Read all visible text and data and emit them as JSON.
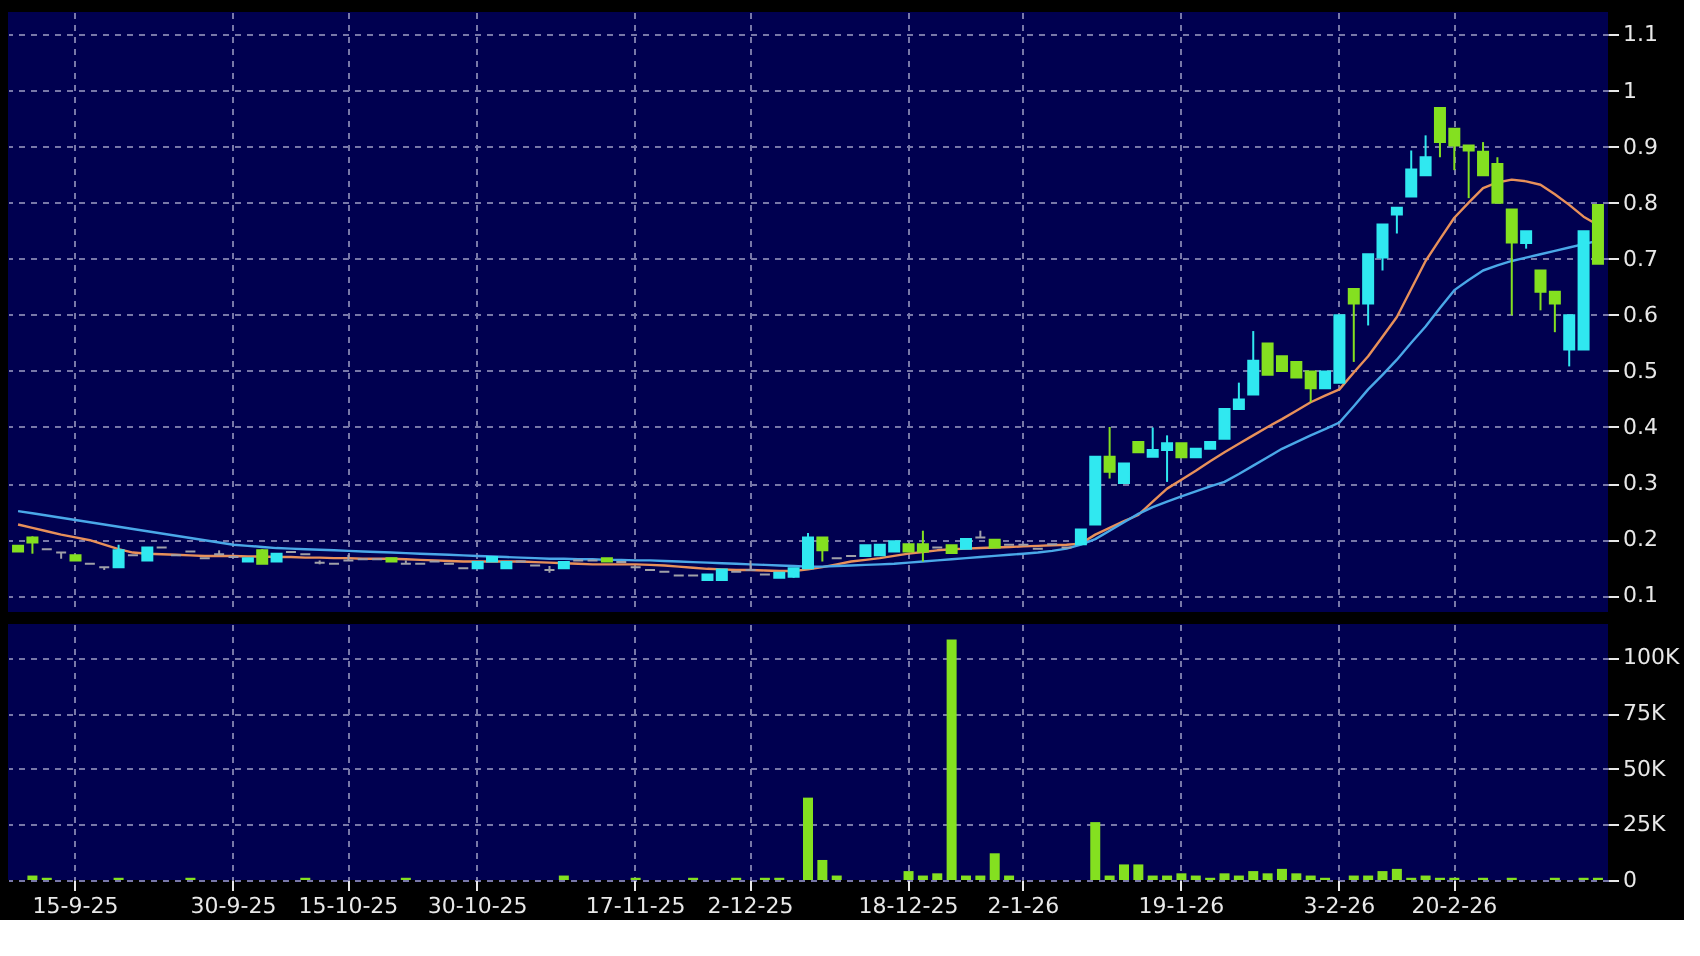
{
  "chart_data": [
    {
      "type": "candlestick",
      "categories": [
        null,
        null,
        null,
        null,
        null,
        null,
        null,
        null,
        null,
        null,
        null,
        null,
        null,
        null,
        null,
        null,
        null,
        null,
        null,
        null,
        null,
        null,
        null,
        null,
        null,
        null,
        null,
        null,
        null,
        null,
        null,
        null,
        null,
        null,
        null,
        null,
        null,
        null,
        null,
        null,
        null,
        null,
        null,
        null,
        null,
        null,
        null,
        null,
        null,
        null,
        null,
        null,
        null,
        null,
        null,
        null,
        null,
        null,
        null,
        null,
        null,
        null,
        null,
        null,
        null,
        null,
        null,
        null,
        null,
        null,
        null,
        null,
        null,
        null,
        null,
        null,
        null,
        null,
        null,
        null,
        null,
        null,
        null,
        null,
        null,
        null,
        null,
        null,
        null,
        null,
        null,
        null,
        null,
        null,
        null,
        null,
        null,
        null,
        null,
        null,
        null,
        null,
        null,
        null,
        null,
        null,
        null,
        null,
        null,
        null,
        null
      ],
      "ohlc": [
        [
          0.188,
          0.188,
          0.178,
          0.178
        ],
        [
          0.203,
          0.205,
          0.174,
          0.194
        ],
        [
          0.182,
          0.182,
          0.182,
          0.182
        ],
        [
          0.176,
          0.176,
          0.165,
          0.176
        ],
        [
          0.171,
          0.171,
          0.162,
          0.162
        ],
        [
          0.156,
          0.156,
          0.156,
          0.156
        ],
        [
          0.15,
          0.15,
          0.145,
          0.15
        ],
        [
          0.15,
          0.19,
          0.15,
          0.18
        ],
        [
          0.171,
          0.171,
          0.171,
          0.171
        ],
        [
          0.162,
          0.185,
          0.162,
          0.185
        ],
        [
          0.185,
          0.185,
          0.185,
          0.185
        ],
        [
          0.171,
          0.171,
          0.171,
          0.171
        ],
        [
          0.178,
          0.178,
          0.178,
          0.178
        ],
        [
          0.166,
          0.166,
          0.166,
          0.166
        ],
        [
          0.173,
          0.18,
          0.173,
          0.173
        ],
        [
          0.168,
          0.168,
          0.168,
          0.168
        ],
        [
          0.16,
          0.166,
          0.16,
          0.166
        ],
        [
          0.18,
          0.182,
          0.156,
          0.156
        ],
        [
          0.16,
          0.174,
          0.16,
          0.174
        ],
        [
          0.177,
          0.177,
          0.177,
          0.177
        ],
        [
          0.173,
          0.173,
          0.173,
          0.173
        ],
        [
          0.158,
          0.162,
          0.155,
          0.158
        ],
        [
          0.156,
          0.156,
          0.156,
          0.156
        ],
        [
          0.162,
          0.172,
          0.162,
          0.162
        ],
        [
          0.164,
          0.164,
          0.164,
          0.164
        ],
        [
          0.164,
          0.164,
          0.164,
          0.164
        ],
        [
          0.166,
          0.166,
          0.16,
          0.16
        ],
        [
          0.156,
          0.162,
          0.156,
          0.156
        ],
        [
          0.156,
          0.156,
          0.156,
          0.156
        ],
        [
          0.16,
          0.16,
          0.16,
          0.16
        ],
        [
          0.156,
          0.156,
          0.156,
          0.156
        ],
        [
          0.148,
          0.148,
          0.148,
          0.148
        ],
        [
          0.148,
          0.159,
          0.148,
          0.159
        ],
        [
          0.16,
          0.168,
          0.16,
          0.168
        ],
        [
          0.148,
          0.159,
          0.148,
          0.159
        ],
        [
          0.16,
          0.16,
          0.16,
          0.16
        ],
        [
          0.153,
          0.153,
          0.153,
          0.153
        ],
        [
          0.145,
          0.152,
          0.14,
          0.145
        ],
        [
          0.148,
          0.159,
          0.148,
          0.159
        ],
        [
          0.162,
          0.162,
          0.162,
          0.162
        ],
        [
          0.162,
          0.162,
          0.162,
          0.162
        ],
        [
          0.166,
          0.166,
          0.16,
          0.16
        ],
        [
          0.159,
          0.159,
          0.159,
          0.159
        ],
        [
          0.15,
          0.15,
          0.15,
          0.15
        ],
        [
          0.145,
          0.145,
          0.145,
          0.145
        ],
        [
          0.142,
          0.142,
          0.142,
          0.142
        ],
        [
          0.135,
          0.135,
          0.135,
          0.135
        ],
        [
          0.135,
          0.135,
          0.135,
          0.135
        ],
        [
          0.127,
          0.137,
          0.127,
          0.137
        ],
        [
          0.127,
          0.146,
          0.127,
          0.146
        ],
        [
          0.142,
          0.142,
          0.142,
          0.142
        ],
        [
          0.145,
          0.162,
          0.145,
          0.145
        ],
        [
          0.137,
          0.137,
          0.137,
          0.137
        ],
        [
          0.131,
          0.14,
          0.131,
          0.14
        ],
        [
          0.133,
          0.148,
          0.131,
          0.148
        ],
        [
          0.148,
          0.211,
          0.148,
          0.203
        ],
        [
          0.203,
          0.203,
          0.16,
          0.18
        ],
        [
          0.166,
          0.166,
          0.166,
          0.166
        ],
        [
          0.17,
          0.17,
          0.17,
          0.17
        ],
        [
          0.17,
          0.189,
          0.17,
          0.189
        ],
        [
          0.171,
          0.19,
          0.171,
          0.19
        ],
        [
          0.178,
          0.196,
          0.178,
          0.196
        ],
        [
          0.191,
          0.191,
          0.178,
          0.178
        ],
        [
          0.191,
          0.215,
          0.16,
          0.178
        ],
        [
          0.185,
          0.185,
          0.185,
          0.185
        ],
        [
          0.189,
          0.189,
          0.175,
          0.175
        ],
        [
          0.183,
          0.2,
          0.183,
          0.2
        ],
        [
          0.203,
          0.215,
          0.203,
          0.203
        ],
        [
          0.199,
          0.199,
          0.185,
          0.185
        ],
        [
          0.19,
          0.19,
          0.19,
          0.19
        ],
        [
          0.19,
          0.19,
          0.19,
          0.19
        ],
        [
          0.183,
          0.183,
          0.183,
          0.183
        ],
        [
          0.191,
          0.191,
          0.191,
          0.191
        ],
        [
          0.185,
          0.185,
          0.185,
          0.185
        ],
        [
          0.191,
          0.217,
          0.191,
          0.217
        ],
        [
          0.226,
          0.347,
          0.226,
          0.347
        ],
        [
          0.347,
          0.4,
          0.308,
          0.32
        ],
        [
          0.3,
          0.335,
          0.3,
          0.335
        ],
        [
          0.373,
          0.373,
          0.355,
          0.355
        ],
        [
          0.347,
          0.399,
          0.347,
          0.359
        ],
        [
          0.359,
          0.385,
          0.302,
          0.371
        ],
        [
          0.371,
          0.371,
          0.346,
          0.346
        ],
        [
          0.346,
          0.361,
          0.346,
          0.361
        ],
        [
          0.361,
          0.373,
          0.361,
          0.373
        ],
        [
          0.379,
          0.432,
          0.379,
          0.432
        ],
        [
          0.432,
          0.479,
          0.432,
          0.449
        ],
        [
          0.458,
          0.571,
          0.458,
          0.518
        ],
        [
          0.549,
          0.549,
          0.493,
          0.493
        ],
        [
          0.526,
          0.526,
          0.5,
          0.5
        ],
        [
          0.516,
          0.516,
          0.488,
          0.488
        ],
        [
          0.499,
          0.499,
          0.444,
          0.469
        ],
        [
          0.469,
          0.499,
          0.469,
          0.499
        ],
        [
          0.479,
          0.599,
          0.479,
          0.599
        ],
        [
          0.646,
          0.646,
          0.516,
          0.62
        ],
        [
          0.62,
          0.708,
          0.581,
          0.708
        ],
        [
          0.702,
          0.761,
          0.679,
          0.761
        ],
        [
          0.779,
          0.791,
          0.745,
          0.791
        ],
        [
          0.811,
          0.893,
          0.811,
          0.859
        ],
        [
          0.849,
          0.92,
          0.849,
          0.881
        ],
        [
          0.969,
          0.969,
          0.881,
          0.908
        ],
        [
          0.932,
          0.932,
          0.858,
          0.902
        ],
        [
          0.902,
          0.902,
          0.808,
          0.893
        ],
        [
          0.891,
          0.908,
          0.849,
          0.849
        ],
        [
          0.869,
          0.881,
          0.8,
          0.8
        ],
        [
          0.788,
          0.788,
          0.599,
          0.729
        ],
        [
          0.728,
          0.749,
          0.718,
          0.749
        ],
        [
          0.679,
          0.679,
          0.608,
          0.641
        ],
        [
          0.641,
          0.641,
          0.569,
          0.62
        ],
        [
          0.538,
          0.599,
          0.508,
          0.599
        ],
        [
          0.538,
          0.749,
          0.538,
          0.749
        ],
        [
          0.796,
          0.796,
          0.691,
          0.691
        ]
      ],
      "colors": [
        "#84e020",
        "#84e020",
        "#a0a0a8",
        "#a0a0a8",
        "#84e020",
        "#a0a0a8",
        "#a0a0a8",
        "#30e8f0",
        "#a0a0a8",
        "#30e8f0",
        "#a0a0a8",
        "#a0a0a8",
        "#a0a0a8",
        "#a0a0a8",
        "#a0a0a8",
        "#a0a0a8",
        "#30e8f0",
        "#84e020",
        "#30e8f0",
        "#a0a0a8",
        "#a0a0a8",
        "#a0a0a8",
        "#a0a0a8",
        "#a0a0a8",
        "#a0a0a8",
        "#a0a0a8",
        "#84e020",
        "#a0a0a8",
        "#a0a0a8",
        "#a0a0a8",
        "#a0a0a8",
        "#a0a0a8",
        "#30e8f0",
        "#30e8f0",
        "#30e8f0",
        "#a0a0a8",
        "#a0a0a8",
        "#a0a0a8",
        "#30e8f0",
        "#a0a0a8",
        "#a0a0a8",
        "#84e020",
        "#a0a0a8",
        "#a0a0a8",
        "#a0a0a8",
        "#a0a0a8",
        "#a0a0a8",
        "#a0a0a8",
        "#30e8f0",
        "#30e8f0",
        "#a0a0a8",
        "#a0a0a8",
        "#a0a0a8",
        "#30e8f0",
        "#30e8f0",
        "#30e8f0",
        "#84e020",
        "#a0a0a8",
        "#a0a0a8",
        "#30e8f0",
        "#30e8f0",
        "#30e8f0",
        "#84e020",
        "#84e020",
        "#a0a0a8",
        "#84e020",
        "#30e8f0",
        "#a0a0a8",
        "#84e020",
        "#a0a0a8",
        "#a0a0a8",
        "#a0a0a8",
        "#a0a0a8",
        "#a0a0a8",
        "#30e8f0",
        "#30e8f0",
        "#84e020",
        "#30e8f0",
        "#84e020",
        "#30e8f0",
        "#30e8f0",
        "#84e020",
        "#30e8f0",
        "#30e8f0",
        "#30e8f0",
        "#30e8f0",
        "#30e8f0",
        "#84e020",
        "#84e020",
        "#84e020",
        "#84e020",
        "#30e8f0",
        "#30e8f0",
        "#84e020",
        "#30e8f0",
        "#30e8f0",
        "#30e8f0",
        "#30e8f0",
        "#30e8f0",
        "#84e020",
        "#84e020",
        "#84e020",
        "#84e020",
        "#84e020",
        "#84e020",
        "#30e8f0",
        "#84e020",
        "#84e020",
        "#30e8f0",
        "#30e8f0",
        "#84e020"
      ],
      "series": [
        {
          "type": "line",
          "color": "#e8905a",
          "values": [
            0.226,
            0.22,
            0.214,
            0.208,
            0.203,
            0.198,
            0.19,
            0.182,
            0.176,
            0.174,
            0.173,
            0.172,
            0.171,
            0.17,
            0.17,
            0.17,
            0.169,
            0.169,
            0.168,
            0.168,
            0.167,
            0.167,
            0.166,
            0.166,
            0.165,
            0.165,
            0.165,
            0.164,
            0.163,
            0.162,
            0.161,
            0.16,
            0.16,
            0.16,
            0.16,
            0.16,
            0.159,
            0.158,
            0.157,
            0.156,
            0.155,
            0.155,
            0.155,
            0.155,
            0.154,
            0.153,
            0.151,
            0.149,
            0.147,
            0.146,
            0.145,
            0.145,
            0.144,
            0.143,
            0.143,
            0.146,
            0.15,
            0.155,
            0.16,
            0.163,
            0.166,
            0.17,
            0.174,
            0.177,
            0.18,
            0.182,
            0.183,
            0.184,
            0.185,
            0.186,
            0.187,
            0.188,
            0.189,
            0.19,
            0.192,
            0.208,
            0.22,
            0.232,
            0.243,
            0.267,
            0.29,
            0.306,
            0.322,
            0.339,
            0.355,
            0.37,
            0.385,
            0.4,
            0.414,
            0.429,
            0.444,
            0.456,
            0.467,
            0.497,
            0.526,
            0.561,
            0.596,
            0.646,
            0.696,
            0.735,
            0.773,
            0.8,
            0.826,
            0.836,
            0.841,
            0.838,
            0.832,
            0.815,
            0.796,
            0.775,
            0.76
          ]
        },
        {
          "type": "line",
          "color": "#4aa8e8",
          "values": [
            0.25,
            0.246,
            0.242,
            0.238,
            0.234,
            0.23,
            0.226,
            0.222,
            0.218,
            0.214,
            0.21,
            0.206,
            0.202,
            0.198,
            0.194,
            0.19,
            0.188,
            0.186,
            0.184,
            0.183,
            0.182,
            0.181,
            0.18,
            0.179,
            0.178,
            0.177,
            0.176,
            0.175,
            0.174,
            0.173,
            0.172,
            0.171,
            0.17,
            0.169,
            0.168,
            0.167,
            0.166,
            0.165,
            0.165,
            0.164,
            0.164,
            0.163,
            0.163,
            0.162,
            0.162,
            0.161,
            0.16,
            0.159,
            0.158,
            0.157,
            0.156,
            0.155,
            0.154,
            0.153,
            0.152,
            0.151,
            0.151,
            0.152,
            0.153,
            0.154,
            0.155,
            0.156,
            0.158,
            0.16,
            0.162,
            0.164,
            0.166,
            0.168,
            0.17,
            0.172,
            0.174,
            0.176,
            0.179,
            0.183,
            0.19,
            0.2,
            0.215,
            0.23,
            0.245,
            0.257,
            0.267,
            0.276,
            0.285,
            0.294,
            0.302,
            0.316,
            0.331,
            0.346,
            0.361,
            0.373,
            0.385,
            0.396,
            0.408,
            0.437,
            0.467,
            0.493,
            0.52,
            0.55,
            0.579,
            0.612,
            0.644,
            0.662,
            0.679,
            0.688,
            0.696,
            0.702,
            0.708,
            0.714,
            0.72,
            0.726,
            0.732
          ]
        }
      ],
      "ylim": [
        0.07,
        1.14
      ],
      "yticks": [
        0.1,
        0.2,
        0.3,
        0.4,
        0.5,
        0.6,
        0.7,
        0.8,
        0.9,
        1,
        1.1
      ],
      "grid": true,
      "tick_labels": "y"
    },
    {
      "type": "bar",
      "categories": [
        null,
        null,
        null,
        null,
        "15-9-25",
        null,
        null,
        null,
        null,
        null,
        null,
        null,
        null,
        null,
        null,
        "30-9-25",
        null,
        null,
        null,
        null,
        null,
        null,
        null,
        "15-10-25",
        null,
        null,
        null,
        null,
        null,
        null,
        null,
        null,
        "30-10-25",
        null,
        null,
        null,
        null,
        null,
        null,
        null,
        null,
        null,
        null,
        "17-11-25",
        null,
        null,
        null,
        null,
        null,
        null,
        null,
        "2-12-25",
        null,
        null,
        null,
        null,
        null,
        null,
        null,
        null,
        null,
        null,
        "18-12-25",
        null,
        null,
        null,
        null,
        null,
        null,
        null,
        "2-1-26",
        null,
        null,
        null,
        null,
        null,
        null,
        null,
        null,
        null,
        null,
        "19-1-26",
        null,
        null,
        null,
        null,
        null,
        null,
        null,
        null,
        null,
        null,
        "3-2-26",
        null,
        null,
        null,
        null,
        null,
        null,
        null,
        "20-2-26",
        null,
        null,
        null,
        null,
        null,
        null,
        null,
        null,
        null,
        null
      ],
      "values": [
        0,
        2000,
        1000,
        0,
        0,
        0,
        0,
        1000,
        0,
        0,
        0,
        0,
        1000,
        0,
        0,
        0,
        0,
        0,
        0,
        0,
        1000,
        0,
        0,
        0,
        0,
        0,
        0,
        1000,
        0,
        0,
        0,
        0,
        0,
        0,
        0,
        0,
        0,
        0,
        2000,
        0,
        0,
        0,
        0,
        1000,
        0,
        0,
        0,
        1000,
        0,
        0,
        1000,
        0,
        1000,
        1000,
        0,
        37000,
        9000,
        2000,
        0,
        0,
        0,
        0,
        4000,
        2000,
        3000,
        108000,
        2000,
        2000,
        12000,
        2000,
        0,
        0,
        0,
        0,
        0,
        26000,
        2000,
        7000,
        7000,
        2000,
        2000,
        3000,
        2000,
        1000,
        3000,
        2000,
        4000,
        3000,
        5000,
        3000,
        2000,
        1000,
        0,
        2000,
        2000,
        4000,
        5000,
        1000,
        2000,
        1000,
        1000,
        0,
        1000,
        0,
        1000,
        0,
        0,
        1000,
        0,
        1000,
        1000
      ],
      "color": "#84e020",
      "ylim": [
        0,
        115000
      ],
      "yticks": [
        0,
        {
          "value": 25000,
          "label": "25K"
        },
        {
          "value": 50000,
          "label": "50K"
        },
        {
          "value": 75000,
          "label": "75K"
        },
        {
          "value": 100000,
          "label": "100K"
        }
      ],
      "grid": true
    }
  ]
}
